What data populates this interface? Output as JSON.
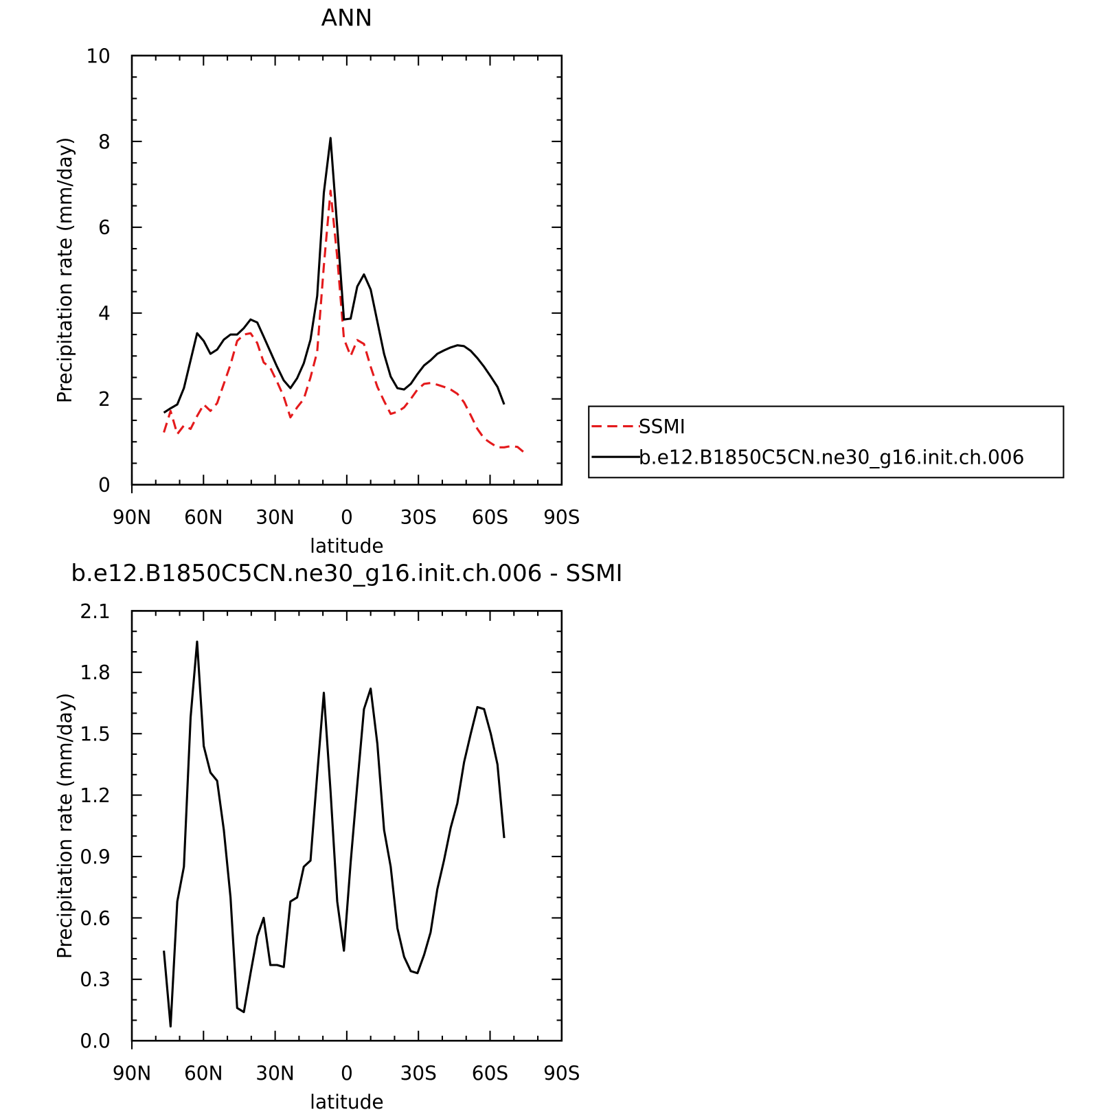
{
  "chart_data": [
    {
      "type": "line",
      "title": "ANN",
      "xlabel": "latitude",
      "ylabel": "Precipitation rate (mm/day)",
      "x": [
        76.6,
        73.8,
        71.0,
        68.2,
        65.4,
        62.7,
        59.9,
        57.1,
        54.3,
        51.5,
        48.7,
        45.9,
        43.1,
        40.3,
        37.5,
        34.8,
        32.0,
        29.2,
        26.4,
        23.6,
        20.8,
        18.0,
        15.2,
        12.4,
        9.6,
        6.8,
        4.0,
        1.2,
        -1.6,
        -4.4,
        -7.2,
        -10.0,
        -12.8,
        -15.6,
        -18.4,
        -21.2,
        -24.0,
        -26.8,
        -29.6,
        -32.4,
        -35.1,
        -37.9,
        -40.7,
        -43.5,
        -46.3,
        -49.1,
        -51.9,
        -54.7,
        -57.5,
        -60.3,
        -63.1,
        -65.9,
        -68.7,
        -71.5,
        -74.3
      ],
      "series": [
        {
          "name": "SSMI",
          "color": "#e41a1c",
          "linestyle": "dashed",
          "values": [
            1.22,
            1.72,
            1.18,
            1.38,
            1.3,
            1.6,
            1.87,
            1.72,
            1.9,
            2.35,
            2.8,
            3.35,
            3.5,
            3.53,
            3.3,
            2.85,
            2.72,
            2.4,
            2.05,
            1.57,
            1.8,
            2.0,
            2.5,
            3.1,
            5.1,
            6.85,
            5.3,
            3.4,
            3.0,
            3.37,
            3.28,
            2.75,
            2.28,
            1.95,
            1.65,
            1.7,
            1.8,
            2.0,
            2.22,
            2.35,
            2.37,
            2.33,
            2.28,
            2.22,
            2.12,
            1.92,
            1.62,
            1.3,
            1.08,
            0.97,
            0.87,
            0.87,
            0.9,
            0.88,
            0.75
          ]
        },
        {
          "name": "b.e12.B1850C5CN.ne30_g16.init.ch.006",
          "color": "#000000",
          "linestyle": "solid",
          "values": [
            1.68,
            1.78,
            1.87,
            2.25,
            2.9,
            3.53,
            3.35,
            3.05,
            3.15,
            3.38,
            3.5,
            3.5,
            3.65,
            3.85,
            3.78,
            3.45,
            3.1,
            2.75,
            2.43,
            2.25,
            2.48,
            2.83,
            3.38,
            4.4,
            6.8,
            8.08,
            6.0,
            3.85,
            3.87,
            4.62,
            4.9,
            4.55,
            3.8,
            3.05,
            2.52,
            2.25,
            2.22,
            2.35,
            2.58,
            2.78,
            2.9,
            3.05,
            3.13,
            3.2,
            3.25,
            3.23,
            3.12,
            2.95,
            2.75,
            2.52,
            2.28,
            1.87,
            null,
            null,
            null
          ]
        }
      ],
      "xlim": [
        90,
        -90
      ],
      "xticks": [
        {
          "value": 90,
          "label": "90N"
        },
        {
          "value": 60,
          "label": "60N"
        },
        {
          "value": 30,
          "label": "30N"
        },
        0,
        {
          "value": -30,
          "label": "30S"
        },
        {
          "value": -60,
          "label": "60S"
        },
        {
          "value": -90,
          "label": "90S"
        }
      ],
      "xticks_minor": [
        80,
        70,
        50,
        40,
        20,
        10,
        -10,
        -20,
        -40,
        -50,
        -70,
        -80
      ],
      "ylim": [
        0,
        10
      ],
      "yticks": [
        0,
        2,
        4,
        6,
        8,
        10
      ],
      "yticks_minor": [
        0.5,
        1,
        1.5,
        2.5,
        3,
        3.5,
        4.5,
        5,
        5.5,
        6.5,
        7,
        7.5,
        8.5,
        9,
        9.5
      ],
      "legend": "right"
    },
    {
      "type": "line",
      "title": "b.e12.B1850C5CN.ne30_g16.init.ch.006 - SSMI",
      "xlabel": "latitude",
      "ylabel": "Precipitation rate (mm/day)",
      "x": [
        76.6,
        73.8,
        71.0,
        68.2,
        65.4,
        62.7,
        59.9,
        57.1,
        54.3,
        51.5,
        48.7,
        45.9,
        43.1,
        40.3,
        37.5,
        34.8,
        32.0,
        29.2,
        26.4,
        23.6,
        20.8,
        18.0,
        15.2,
        12.4,
        9.6,
        6.8,
        4.0,
        1.2,
        -1.6,
        -4.4,
        -7.2,
        -10.0,
        -12.8,
        -15.6,
        -18.4,
        -21.2,
        -24.0,
        -26.8,
        -29.6,
        -32.4,
        -35.1,
        -37.9,
        -40.7,
        -43.5,
        -46.3,
        -49.1,
        -51.9,
        -54.7,
        -57.5,
        -60.3,
        -63.1,
        -65.9
      ],
      "series": [
        {
          "color": "#000000",
          "linestyle": "solid",
          "values": [
            0.44,
            0.07,
            0.68,
            0.85,
            1.58,
            1.95,
            1.44,
            1.31,
            1.27,
            1.03,
            0.7,
            0.16,
            0.14,
            0.33,
            0.51,
            0.6,
            0.37,
            0.37,
            0.36,
            0.68,
            0.7,
            0.85,
            0.88,
            1.3,
            1.7,
            1.22,
            0.68,
            0.44,
            0.87,
            1.25,
            1.62,
            1.72,
            1.45,
            1.03,
            0.85,
            0.55,
            0.41,
            0.34,
            0.33,
            0.42,
            0.53,
            0.74,
            0.88,
            1.04,
            1.16,
            1.36,
            1.5,
            1.63,
            1.62,
            1.5,
            1.35,
            0.99
          ]
        }
      ],
      "xlim": [
        90,
        -90
      ],
      "xticks": [
        {
          "value": 90,
          "label": "90N"
        },
        {
          "value": 60,
          "label": "60N"
        },
        {
          "value": 30,
          "label": "30N"
        },
        0,
        {
          "value": -30,
          "label": "30S"
        },
        {
          "value": -60,
          "label": "60S"
        },
        {
          "value": -90,
          "label": "90S"
        }
      ],
      "xticks_minor": [
        80,
        70,
        50,
        40,
        20,
        10,
        -10,
        -20,
        -40,
        -50,
        -70,
        -80
      ],
      "ylim": [
        0,
        2.1
      ],
      "yticks": [
        {
          "value": 0,
          "label": "0.0"
        },
        0.3,
        0.6,
        0.9,
        1.2,
        1.5,
        1.8,
        2.1
      ],
      "yticks_minor": [
        0.1,
        0.2,
        0.4,
        0.5,
        0.7,
        0.8,
        1.0,
        1.1,
        1.3,
        1.4,
        1.6,
        1.7,
        1.9,
        2.0
      ]
    }
  ]
}
